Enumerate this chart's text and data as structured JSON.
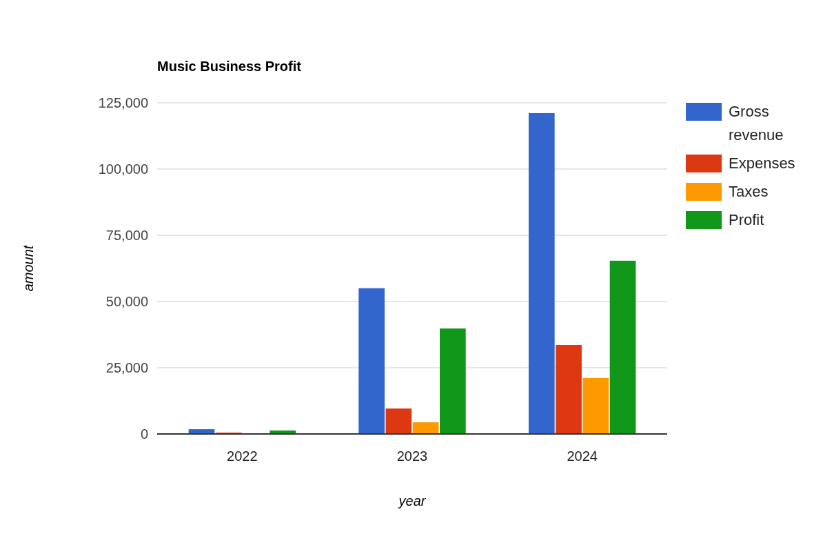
{
  "chart_data": {
    "type": "bar",
    "title": "Music Business Profit",
    "xlabel": "year",
    "ylabel": "amount",
    "categories": [
      "2022",
      "2023",
      "2024"
    ],
    "series": [
      {
        "name": "Gross revenue",
        "color": "#3366cc",
        "values": [
          1800,
          55000,
          121100
        ]
      },
      {
        "name": "Expenses",
        "color": "#dc3912",
        "values": [
          500,
          9600,
          33600
        ]
      },
      {
        "name": "Taxes",
        "color": "#ff9900",
        "values": [
          0,
          4400,
          21100
        ]
      },
      {
        "name": "Profit",
        "color": "#109618",
        "values": [
          1300,
          39800,
          65400
        ]
      }
    ],
    "ylim": [
      0,
      125000
    ],
    "yticks": [
      {
        "value": 0,
        "label": "0"
      },
      {
        "value": 25000,
        "label": "25,000"
      },
      {
        "value": 50000,
        "label": "50,000"
      },
      {
        "value": 75000,
        "label": "75,000"
      },
      {
        "value": 100000,
        "label": "100,000"
      },
      {
        "value": 125000,
        "label": "125,000"
      }
    ],
    "grid": "y",
    "legend": "right"
  }
}
